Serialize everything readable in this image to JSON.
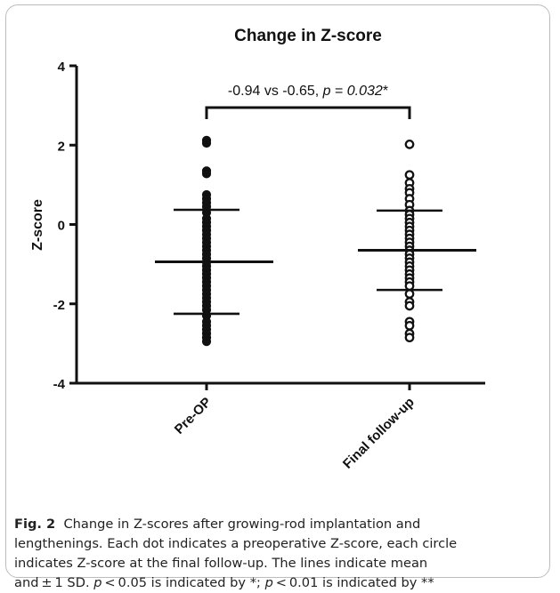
{
  "chart_data": {
    "type": "scatter",
    "title": "Change in Z-score",
    "ylabel": "Z-score",
    "xlabel": "",
    "ylim": [
      -4,
      4
    ],
    "yticks": [
      -4,
      -2,
      0,
      2,
      4
    ],
    "categories": [
      "Pre-OP",
      "Final follow-up"
    ],
    "series": [
      {
        "name": "",
        "category": "Pre-OP",
        "marker": "filled-circle",
        "mean": -0.94,
        "sd_lower": -2.25,
        "sd_upper": 0.37,
        "values": [
          2.12,
          2.05,
          1.35,
          1.28,
          0.75,
          0.65,
          0.55,
          0.45,
          0.3,
          0.15,
          0.05,
          -0.05,
          -0.15,
          -0.25,
          -0.35,
          -0.45,
          -0.55,
          -0.65,
          -0.75,
          -0.85,
          -0.95,
          -1.05,
          -1.15,
          -1.25,
          -1.35,
          -1.45,
          -1.55,
          -1.65,
          -1.75,
          -1.85,
          -1.95,
          -2.05,
          -2.15,
          -2.3,
          -2.45,
          -2.55,
          -2.65,
          -2.75,
          -2.85,
          -2.95
        ]
      },
      {
        "name": "",
        "category": "Final follow-up",
        "marker": "open-circle",
        "mean": -0.65,
        "sd_lower": -1.65,
        "sd_upper": 0.35,
        "values": [
          2.02,
          1.25,
          1.05,
          0.9,
          0.8,
          0.65,
          0.5,
          0.35,
          0.25,
          0.15,
          0.05,
          -0.05,
          -0.15,
          -0.25,
          -0.35,
          -0.45,
          -0.55,
          -0.65,
          -0.75,
          -0.85,
          -0.95,
          -1.05,
          -1.15,
          -1.25,
          -1.35,
          -1.45,
          -1.55,
          -1.75,
          -1.95,
          -2.05,
          -2.45,
          -2.55,
          -2.75,
          -2.85
        ]
      }
    ],
    "annotation": {
      "text": "-0.94 vs -0.65, ",
      "p_label": "p",
      "p_eq": " = ",
      "p_value": "0.032",
      "star": "*"
    },
    "grid": false
  },
  "caption": {
    "fig_label": "Fig. 2",
    "line1": "Change in Z-scores after growing-rod implantation and",
    "line2": "lengthenings. Each dot indicates a preoperative Z-score, each circle",
    "line3": "indicates Z-score at the final follow-up. The lines indicate mean",
    "line4_a": "and ± 1 SD. ",
    "p1": "p",
    "line4_b": " < 0.05 is indicated by *; ",
    "p2": "p",
    "line4_c": " < 0.01 is indicated by **"
  }
}
